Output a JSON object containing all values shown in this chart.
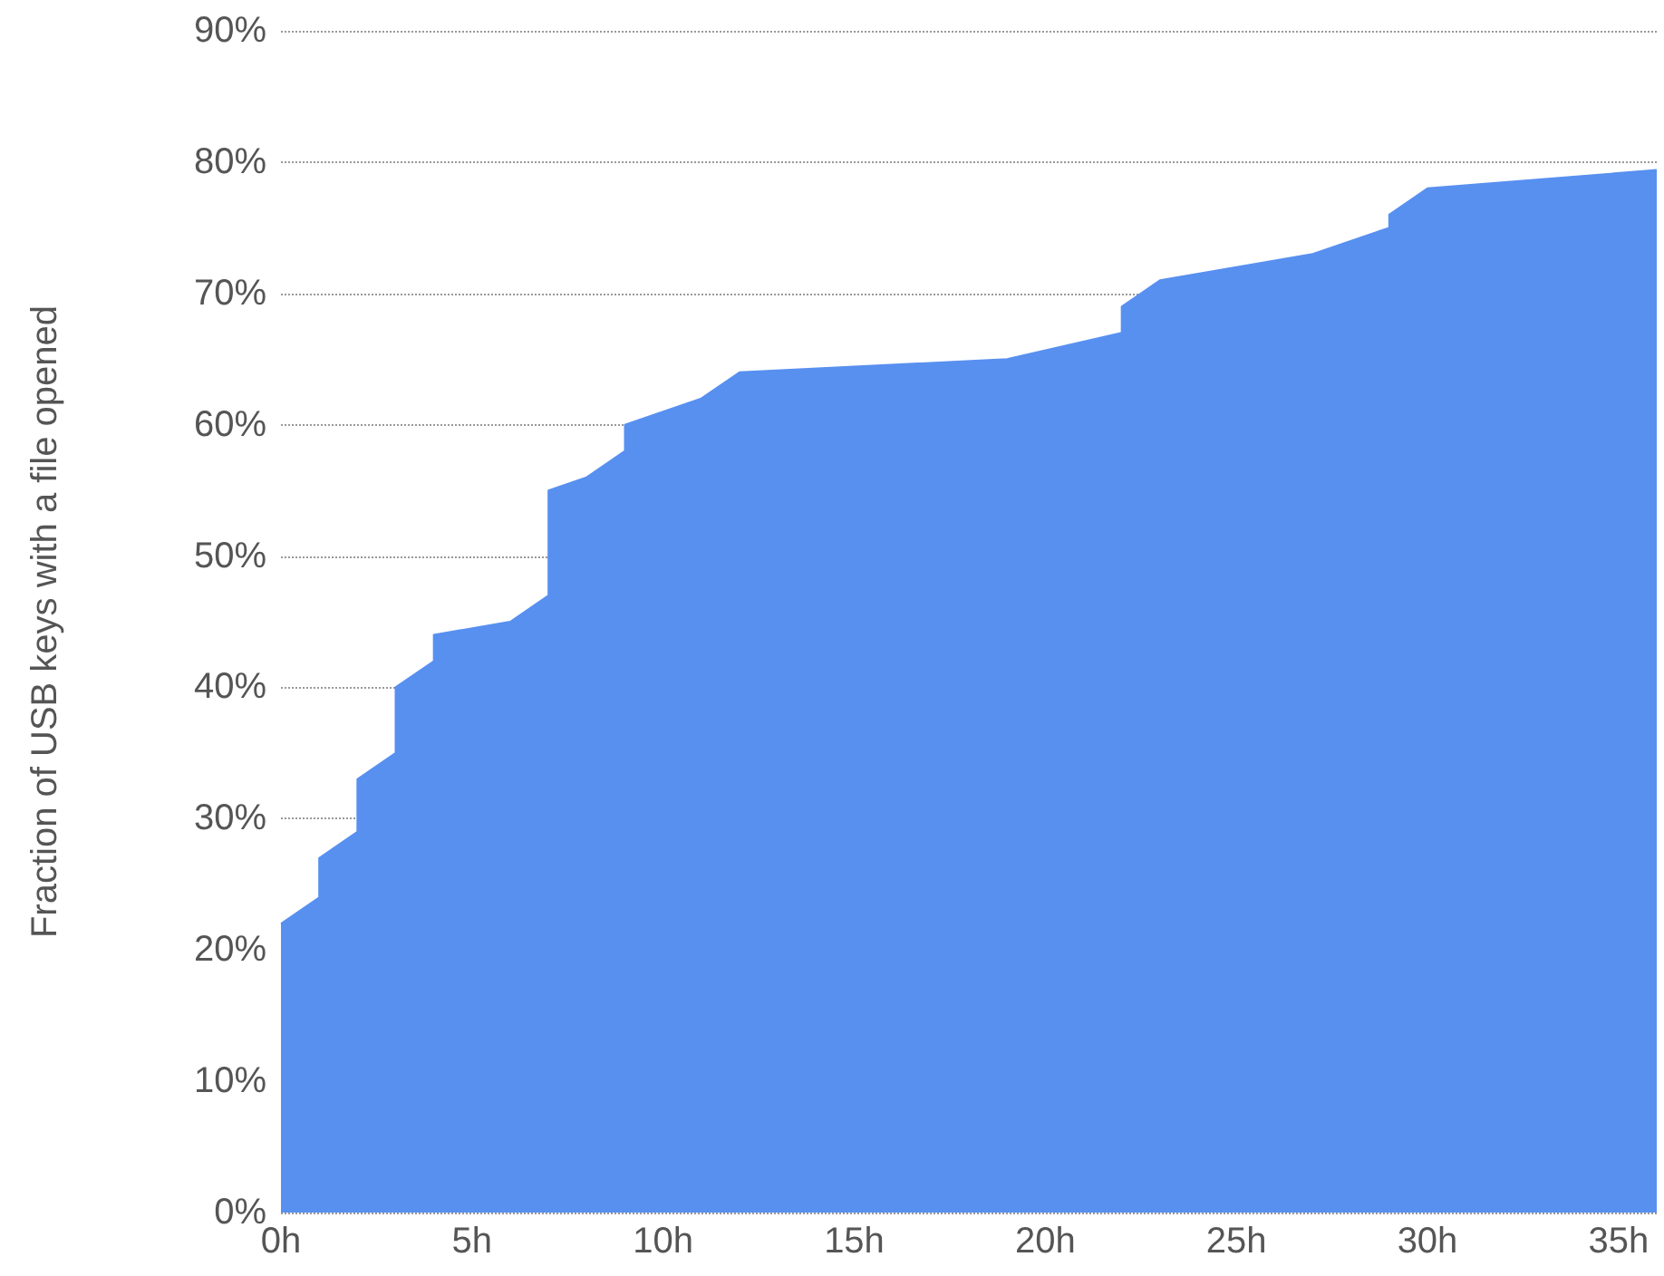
{
  "chart_data": {
    "type": "area",
    "ylabel": "Fraction of USB keys with a file opened",
    "x": [
      0,
      1,
      1,
      2,
      2,
      3,
      3,
      4,
      4,
      6,
      7,
      7,
      8,
      9,
      9,
      11,
      12,
      19,
      22,
      22,
      23,
      27,
      29,
      29,
      30,
      36
    ],
    "series": [
      {
        "color": "#5890f0",
        "values": [
          22,
          24,
          27,
          29,
          33,
          35,
          40,
          42,
          44,
          45,
          47,
          55,
          56,
          58,
          60,
          62,
          64,
          65,
          67,
          69,
          71,
          73,
          75,
          76,
          78,
          79.4
        ]
      }
    ],
    "xlim": [
      0,
      36
    ],
    "xticks": [
      {
        "value": 0,
        "label": "0h"
      },
      {
        "value": 5,
        "label": "5h"
      },
      {
        "value": 10,
        "label": "10h"
      },
      {
        "value": 15,
        "label": "15h"
      },
      {
        "value": 20,
        "label": "20h"
      },
      {
        "value": 25,
        "label": "25h"
      },
      {
        "value": 30,
        "label": "30h"
      },
      {
        "value": 35,
        "label": "35h"
      }
    ],
    "ylim": [
      0,
      90
    ],
    "yticks": [
      {
        "value": 0,
        "label": "0%"
      },
      {
        "value": 10,
        "label": "10%"
      },
      {
        "value": 20,
        "label": "20%"
      },
      {
        "value": 30,
        "label": "30%"
      },
      {
        "value": 40,
        "label": "40%"
      },
      {
        "value": 50,
        "label": "50%"
      },
      {
        "value": 60,
        "label": "60%"
      },
      {
        "value": 70,
        "label": "70%"
      },
      {
        "value": 80,
        "label": "80%"
      },
      {
        "value": 90,
        "label": "90%"
      }
    ],
    "grid": "y",
    "marker": "none"
  }
}
